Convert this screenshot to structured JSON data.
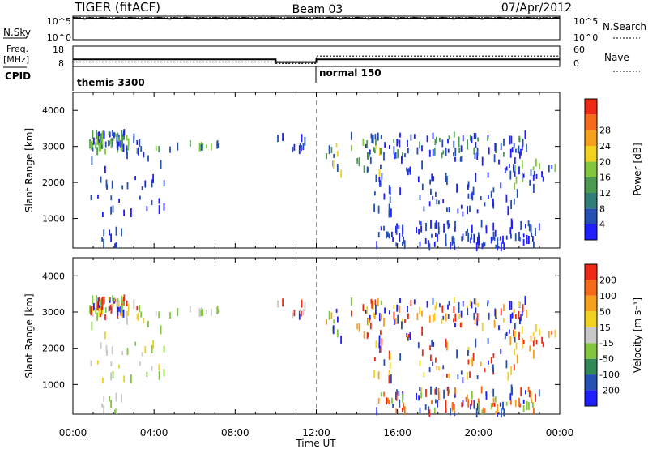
{
  "header": {
    "radar": "TIGER (fitACF)",
    "beam": "Beam 03",
    "date": "07/Apr/2012"
  },
  "top_panels": {
    "nsky_label": "N.Sky",
    "nsky_ticks": [
      "10^5",
      "10^0"
    ],
    "nsearch_label": "N.Search",
    "nsearch_ticks": [
      "10^5",
      "10^0"
    ],
    "freq_label_1": "Freq.",
    "freq_label_2": "[MHz]",
    "freq_ticks": [
      "18",
      "8"
    ],
    "nave_label": "Nave",
    "nave_ticks": [
      "60",
      "0"
    ],
    "cpid_label": "CPID",
    "cpid_modes": [
      "themis 3300",
      "normal 150"
    ]
  },
  "chart_data": [
    {
      "type": "line",
      "title": "N.Sky / N.Search",
      "x_hours": [
        0,
        24
      ],
      "series": [
        {
          "name": "N.Sky",
          "x": [
            0,
            24
          ],
          "values": [
            90000,
            90000
          ]
        },
        {
          "name": "N.Search",
          "x": [
            0,
            24
          ],
          "values": [
            95000,
            95000
          ]
        }
      ]
    },
    {
      "type": "line",
      "title": "Freq / Nave",
      "series": [
        {
          "name": "Freq. [MHz]",
          "x": [
            0,
            10,
            10,
            12,
            12,
            24
          ],
          "values": [
            12,
            12,
            10,
            10,
            12,
            12
          ]
        },
        {
          "name": "Nave",
          "x": [
            0,
            10,
            10,
            12,
            12,
            24
          ],
          "values": [
            15,
            15,
            10,
            10,
            35,
            35
          ]
        }
      ]
    },
    {
      "type": "scatter",
      "panel": "power",
      "ylabel": "Slant Range [km]",
      "xlabel": "Time UT",
      "ylim": [
        180,
        4500
      ],
      "xlim": [
        0,
        24
      ],
      "yticks": [
        "1000",
        "2000",
        "3000",
        "4000"
      ],
      "xticks": [
        "00:00",
        "04:00",
        "08:00",
        "12:00",
        "16:00",
        "20:00",
        "00:00"
      ],
      "colorbar": {
        "label": "Power [dB]",
        "ticks": [
          "4",
          "8",
          "12",
          "16",
          "20",
          "24",
          "28"
        ],
        "colors": [
          "#1f1fff",
          "#2450b4",
          "#2f7f78",
          "#4a9a50",
          "#82c83c",
          "#f2d21e",
          "#f7a01d",
          "#f56b18",
          "#ee2a16"
        ]
      },
      "clusters": [
        {
          "t": [
            0.7,
            3.2
          ],
          "r": [
            2850,
            3400
          ],
          "n": 70,
          "c": [
            "#2450b4",
            "#4a9a50",
            "#82c83c",
            "#1f1fff"
          ]
        },
        {
          "t": [
            2.8,
            7.2
          ],
          "r": [
            2900,
            3100
          ],
          "n": 16,
          "c": [
            "#82c83c",
            "#4a9a50",
            "#2450b4"
          ]
        },
        {
          "t": [
            0.8,
            4.6
          ],
          "r": [
            1100,
            2900
          ],
          "n": 34,
          "c": [
            "#2450b4",
            "#1f1fff"
          ]
        },
        {
          "t": [
            1.4,
            2.6
          ],
          "r": [
            250,
            700
          ],
          "n": 10,
          "c": [
            "#2450b4",
            "#1f1fff"
          ]
        },
        {
          "t": [
            9.8,
            11.6
          ],
          "r": [
            2900,
            3300
          ],
          "n": 10,
          "c": [
            "#2450b4",
            "#1f1fff"
          ]
        },
        {
          "t": [
            12.2,
            15.2
          ],
          "r": [
            2100,
            3300
          ],
          "n": 22,
          "c": [
            "#82c83c",
            "#4a9a50",
            "#f2d21e",
            "#2450b4"
          ]
        },
        {
          "t": [
            14.4,
            22.5
          ],
          "r": [
            2700,
            3350
          ],
          "n": 95,
          "c": [
            "#2450b4",
            "#1f1fff",
            "#4a9a50"
          ]
        },
        {
          "t": [
            14.2,
            22.0
          ],
          "r": [
            1100,
            2700
          ],
          "n": 85,
          "c": [
            "#2450b4",
            "#1f1fff"
          ]
        },
        {
          "t": [
            14.8,
            23.0
          ],
          "r": [
            200,
            900
          ],
          "n": 110,
          "c": [
            "#2450b4",
            "#1f1fff"
          ]
        },
        {
          "t": [
            21.5,
            23.8
          ],
          "r": [
            1800,
            2600
          ],
          "n": 24,
          "c": [
            "#2450b4",
            "#1f1fff",
            "#82c83c"
          ]
        }
      ]
    },
    {
      "type": "scatter",
      "panel": "velocity",
      "ylabel": "Slant Range [km]",
      "xlabel": "Time UT",
      "ylim": [
        180,
        4500
      ],
      "xlim": [
        0,
        24
      ],
      "yticks": [
        "1000",
        "2000",
        "3000",
        "4000"
      ],
      "xticks": [
        "00:00",
        "04:00",
        "08:00",
        "12:00",
        "16:00",
        "20:00",
        "00:00"
      ],
      "colorbar": {
        "label": "Velocity [m s⁻¹]",
        "ticks": [
          "200",
          "100",
          "50",
          "15",
          "-15",
          "-50",
          "-100",
          "-200"
        ],
        "colors": [
          "#1f1fff",
          "#2450b4",
          "#2f8a56",
          "#82c83c",
          "#c8c8c8",
          "#f2d21e",
          "#f7a01d",
          "#f56b18",
          "#ee2a16"
        ]
      },
      "clusters": [
        {
          "t": [
            0.7,
            3.2
          ],
          "r": [
            2850,
            3400
          ],
          "n": 70,
          "c": [
            "#c8c8c8",
            "#82c83c",
            "#f2d21e",
            "#ee2a16",
            "#1f1fff"
          ]
        },
        {
          "t": [
            2.8,
            7.2
          ],
          "r": [
            2900,
            3100
          ],
          "n": 16,
          "c": [
            "#c8c8c8",
            "#82c83c"
          ]
        },
        {
          "t": [
            0.8,
            4.6
          ],
          "r": [
            1100,
            2900
          ],
          "n": 34,
          "c": [
            "#c8c8c8",
            "#82c83c",
            "#f2d21e"
          ]
        },
        {
          "t": [
            1.4,
            2.6
          ],
          "r": [
            250,
            700
          ],
          "n": 10,
          "c": [
            "#c8c8c8",
            "#82c83c"
          ]
        },
        {
          "t": [
            9.8,
            11.6
          ],
          "r": [
            2900,
            3300
          ],
          "n": 10,
          "c": [
            "#c8c8c8",
            "#ee2a16",
            "#1f1fff"
          ]
        },
        {
          "t": [
            12.2,
            15.2
          ],
          "r": [
            2100,
            3300
          ],
          "n": 22,
          "c": [
            "#ee2a16",
            "#f7a01d",
            "#1f1fff",
            "#82c83c"
          ]
        },
        {
          "t": [
            14.4,
            22.5
          ],
          "r": [
            2700,
            3350
          ],
          "n": 95,
          "c": [
            "#ee2a16",
            "#f7a01d",
            "#1f1fff",
            "#2450b4",
            "#f2d21e"
          ]
        },
        {
          "t": [
            14.2,
            22.0
          ],
          "r": [
            1100,
            2700
          ],
          "n": 85,
          "c": [
            "#ee2a16",
            "#f7a01d",
            "#f2d21e",
            "#1f1fff",
            "#2450b4"
          ]
        },
        {
          "t": [
            14.8,
            23.0
          ],
          "r": [
            200,
            900
          ],
          "n": 110,
          "c": [
            "#ee2a16",
            "#f56b18",
            "#f7a01d",
            "#1f1fff",
            "#2450b4",
            "#82c83c"
          ]
        },
        {
          "t": [
            21.5,
            23.8
          ],
          "r": [
            1800,
            2600
          ],
          "n": 24,
          "c": [
            "#f7a01d",
            "#ee2a16",
            "#f2d21e"
          ]
        }
      ]
    }
  ]
}
